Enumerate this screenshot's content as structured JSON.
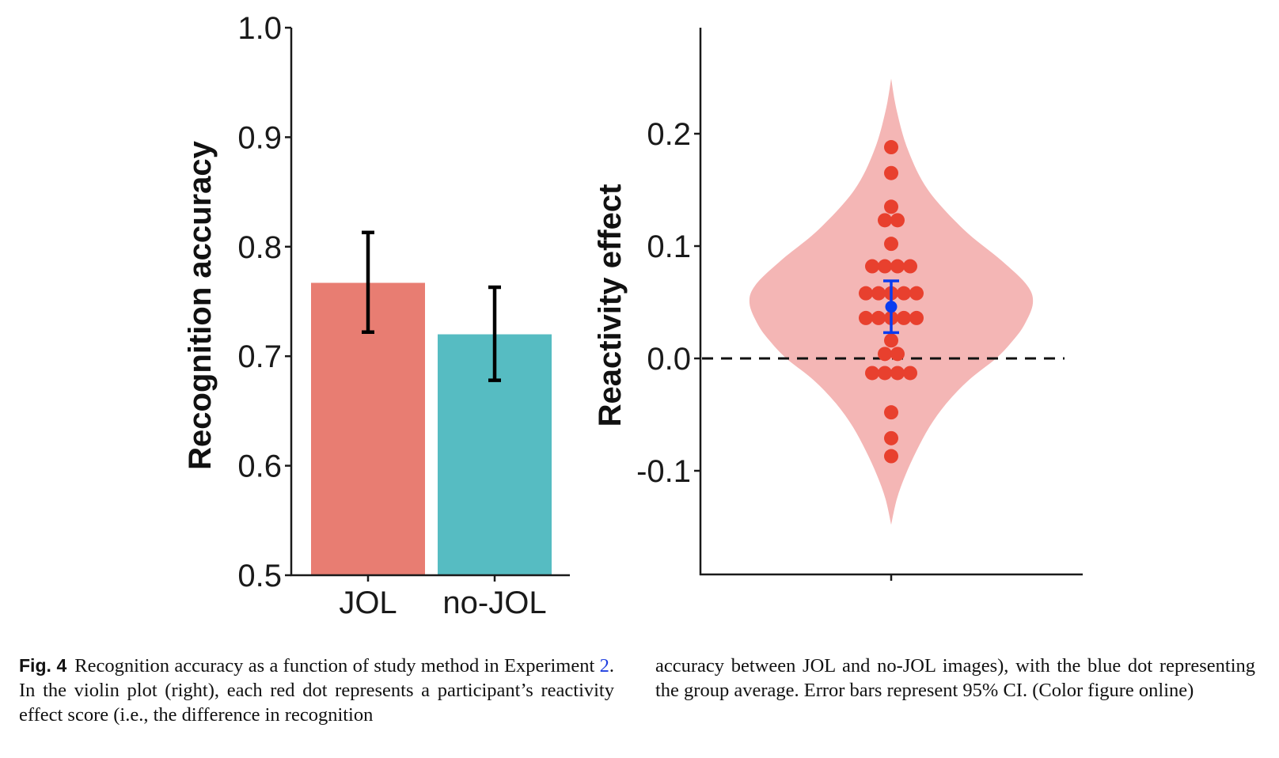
{
  "chart_data": [
    {
      "type": "bar",
      "panel": "left",
      "title": "",
      "xlabel": "",
      "ylabel": "Recognition accuracy",
      "ylim": [
        0.5,
        1.0
      ],
      "yticks": [
        0.5,
        0.6,
        0.7,
        0.8,
        0.9,
        1.0
      ],
      "ytick_labels": [
        "0.5",
        "0.6",
        "0.7",
        "0.8",
        "0.9",
        "1.0"
      ],
      "categories": [
        "JOL",
        "no-JOL"
      ],
      "values": [
        0.767,
        0.72
      ],
      "error_bars": [
        {
          "lower": 0.722,
          "upper": 0.813
        },
        {
          "lower": 0.678,
          "upper": 0.763
        }
      ],
      "error_bar_meaning": "95% CI",
      "colors": [
        "#E87D72",
        "#56BCC2"
      ],
      "grid": false,
      "legend": "none"
    },
    {
      "type": "violin",
      "panel": "right",
      "title": "",
      "xlabel": "",
      "ylabel": "Reactivity effect",
      "ylim": [
        -0.19,
        0.29
      ],
      "yticks": [
        -0.1,
        0.0,
        0.1,
        0.2
      ],
      "ytick_labels": [
        "-0.1",
        "0.0",
        "0.1",
        "0.2"
      ],
      "reference_line": {
        "y": 0.0,
        "style": "dashed",
        "color": "#111111"
      },
      "violin": {
        "color": "#F4B6B5",
        "profile": [
          {
            "y": 0.249,
            "w": 0.0
          },
          {
            "y": 0.22,
            "w": 0.04
          },
          {
            "y": 0.185,
            "w": 0.12
          },
          {
            "y": 0.15,
            "w": 0.26
          },
          {
            "y": 0.115,
            "w": 0.51
          },
          {
            "y": 0.087,
            "w": 0.78
          },
          {
            "y": 0.065,
            "w": 0.96
          },
          {
            "y": 0.049,
            "w": 1.0
          },
          {
            "y": 0.03,
            "w": 0.94
          },
          {
            "y": 0.016,
            "w": 0.86
          },
          {
            "y": 0.0,
            "w": 0.74
          },
          {
            "y": -0.019,
            "w": 0.55
          },
          {
            "y": -0.04,
            "w": 0.39
          },
          {
            "y": -0.061,
            "w": 0.27
          },
          {
            "y": -0.082,
            "w": 0.18
          },
          {
            "y": -0.104,
            "w": 0.1
          },
          {
            "y": -0.125,
            "w": 0.04
          },
          {
            "y": -0.148,
            "w": 0.0
          }
        ]
      },
      "points": {
        "color": "#E8402E",
        "description": "each red dot is one participant's reactivity effect score",
        "values": [
          0.188,
          0.165,
          0.135,
          0.123,
          0.123,
          0.102,
          0.082,
          0.082,
          0.082,
          0.082,
          0.058,
          0.058,
          0.058,
          0.058,
          0.058,
          0.036,
          0.036,
          0.036,
          0.036,
          0.036,
          0.016,
          0.004,
          0.004,
          -0.013,
          -0.013,
          -0.013,
          -0.013,
          -0.048,
          -0.071,
          -0.087
        ]
      },
      "mean": {
        "value": 0.046,
        "ci_lower": 0.023,
        "ci_upper": 0.069,
        "color": "#0A3CF0",
        "error_bar_meaning": "95% CI"
      },
      "grid": false,
      "legend": "none"
    }
  ],
  "caption": {
    "label": "Fig. 4",
    "left_before_ref": "Recognition accuracy as a function of study method in Experiment ",
    "ref": "2",
    "left_after_ref": ". In the violin plot (right), each red dot represents a participant’s reactivity effect score (i.e., the difference in recognition",
    "right": "accuracy between JOL and no-JOL images), with the blue dot representing the group average. Error bars represent 95% CI. (Color figure online)"
  }
}
